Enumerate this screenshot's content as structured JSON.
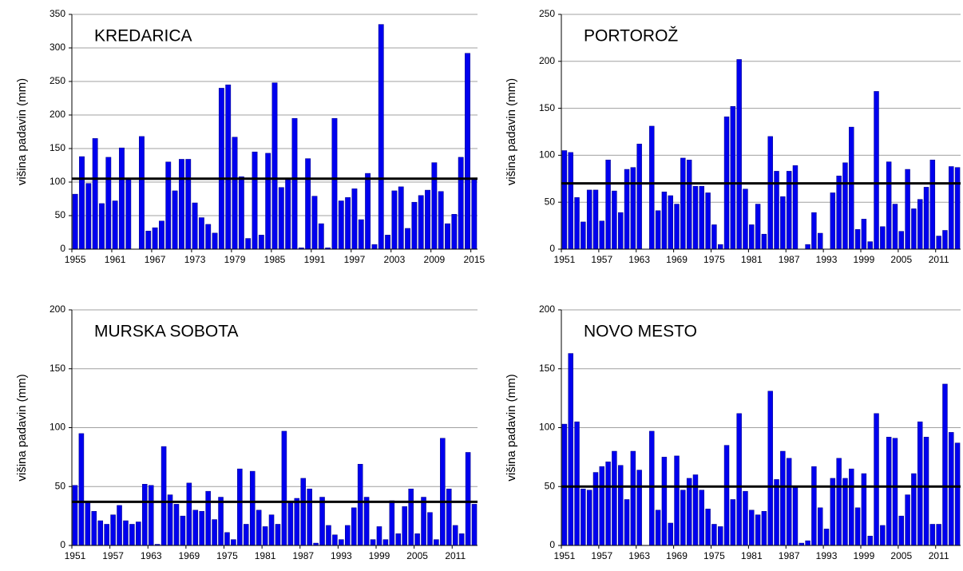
{
  "chart_data": [
    {
      "type": "bar",
      "title": "KREDARICA",
      "y_label": "višina padavin (mm)",
      "color": "#0000ee",
      "reference_line": 105,
      "categories": [
        "1955",
        null,
        null,
        null,
        null,
        null,
        "1961",
        null,
        null,
        null,
        null,
        null,
        "1967",
        null,
        null,
        null,
        null,
        null,
        "1973",
        null,
        null,
        null,
        null,
        null,
        "1979",
        null,
        null,
        null,
        null,
        null,
        "1985",
        null,
        null,
        null,
        null,
        null,
        "1991",
        null,
        null,
        null,
        null,
        null,
        "1997",
        null,
        null,
        null,
        null,
        null,
        "2003",
        null,
        null,
        null,
        null,
        null,
        "2009",
        null,
        null,
        null,
        null,
        null,
        "2015"
      ],
      "values": [
        82,
        138,
        98,
        165,
        68,
        137,
        72,
        151,
        104,
        0,
        168,
        27,
        32,
        42,
        130,
        87,
        134,
        134,
        69,
        47,
        37,
        24,
        240,
        245,
        167,
        108,
        16,
        145,
        21,
        143,
        248,
        92,
        105,
        195,
        2,
        135,
        79,
        38,
        2,
        195,
        72,
        77,
        90,
        44,
        113,
        7,
        335,
        21,
        87,
        93,
        31,
        70,
        80,
        88,
        129,
        86,
        38,
        52,
        137,
        292,
        105
      ],
      "ylim": [
        0,
        350
      ],
      "yticks": [
        0,
        50,
        100,
        150,
        200,
        250,
        300,
        350
      ],
      "grid": true
    },
    {
      "type": "bar",
      "title": "PORTOROŽ",
      "y_label": "višina padavin (mm)",
      "color": "#0000ee",
      "reference_line": 70,
      "categories": [
        "1951",
        null,
        null,
        null,
        null,
        null,
        "1957",
        null,
        null,
        null,
        null,
        null,
        "1963",
        null,
        null,
        null,
        null,
        null,
        "1969",
        null,
        null,
        null,
        null,
        null,
        "1975",
        null,
        null,
        null,
        null,
        null,
        "1981",
        null,
        null,
        null,
        null,
        null,
        "1987",
        null,
        null,
        null,
        null,
        null,
        "1993",
        null,
        null,
        null,
        null,
        null,
        "1999",
        null,
        null,
        null,
        null,
        null,
        "2005",
        null,
        null,
        null,
        null,
        null,
        "2011",
        null,
        null,
        null
      ],
      "values": [
        105,
        103,
        55,
        29,
        63,
        63,
        30,
        95,
        62,
        39,
        85,
        87,
        112,
        0,
        131,
        41,
        61,
        57,
        48,
        97,
        95,
        67,
        67,
        60,
        26,
        5,
        141,
        152,
        202,
        64,
        26,
        48,
        16,
        120,
        83,
        56,
        83,
        89,
        0,
        5,
        39,
        17,
        0,
        60,
        78,
        92,
        130,
        21,
        32,
        8,
        168,
        24,
        93,
        48,
        19,
        85,
        43,
        53,
        66,
        95,
        14,
        20,
        88,
        87
      ],
      "ylim": [
        0,
        250
      ],
      "yticks": [
        0,
        50,
        100,
        150,
        200,
        250
      ],
      "grid": true
    },
    {
      "type": "bar",
      "title": "MURSKA SOBOTA",
      "y_label": "višina padavin (mm)",
      "color": "#0000ee",
      "reference_line": 37,
      "categories": [
        "1951",
        null,
        null,
        null,
        null,
        null,
        "1957",
        null,
        null,
        null,
        null,
        null,
        "1963",
        null,
        null,
        null,
        null,
        null,
        "1969",
        null,
        null,
        null,
        null,
        null,
        "1975",
        null,
        null,
        null,
        null,
        null,
        "1981",
        null,
        null,
        null,
        null,
        null,
        "1987",
        null,
        null,
        null,
        null,
        null,
        "1993",
        null,
        null,
        null,
        null,
        null,
        "1999",
        null,
        null,
        null,
        null,
        null,
        "2005",
        null,
        null,
        null,
        null,
        null,
        "2011",
        null,
        null,
        null
      ],
      "values": [
        51,
        95,
        37,
        29,
        21,
        18,
        26,
        34,
        21,
        18,
        20,
        52,
        51,
        1,
        84,
        43,
        35,
        25,
        53,
        30,
        29,
        46,
        22,
        41,
        11,
        5,
        65,
        18,
        63,
        30,
        16,
        26,
        18,
        97,
        37,
        40,
        57,
        48,
        2,
        41,
        17,
        9,
        5,
        17,
        32,
        69,
        41,
        5,
        16,
        5,
        38,
        10,
        33,
        48,
        10,
        41,
        28,
        5,
        91,
        48,
        17,
        10,
        79,
        35
      ],
      "ylim": [
        0,
        200
      ],
      "yticks": [
        0,
        50,
        100,
        150,
        200
      ],
      "grid": true
    },
    {
      "type": "bar",
      "title": "NOVO MESTO",
      "y_label": "višina padavin (mm)",
      "color": "#0000ee",
      "reference_line": 50,
      "categories": [
        "1951",
        null,
        null,
        null,
        null,
        null,
        "1957",
        null,
        null,
        null,
        null,
        null,
        "1963",
        null,
        null,
        null,
        null,
        null,
        "1969",
        null,
        null,
        null,
        null,
        null,
        "1975",
        null,
        null,
        null,
        null,
        null,
        "1981",
        null,
        null,
        null,
        null,
        null,
        "1987",
        null,
        null,
        null,
        null,
        null,
        "1993",
        null,
        null,
        null,
        null,
        null,
        "1999",
        null,
        null,
        null,
        null,
        null,
        "2005",
        null,
        null,
        null,
        null,
        null,
        "2011",
        null,
        null,
        null
      ],
      "values": [
        103,
        163,
        105,
        48,
        47,
        62,
        67,
        71,
        80,
        68,
        39,
        80,
        64,
        0,
        97,
        30,
        75,
        19,
        76,
        47,
        57,
        60,
        47,
        31,
        18,
        16,
        85,
        39,
        112,
        46,
        30,
        26,
        29,
        131,
        56,
        80,
        74,
        49,
        2,
        4,
        67,
        32,
        14,
        57,
        74,
        57,
        65,
        32,
        61,
        8,
        112,
        17,
        92,
        91,
        25,
        43,
        61,
        105,
        92,
        18,
        18,
        137,
        96,
        87
      ],
      "ylim": [
        0,
        200
      ],
      "yticks": [
        0,
        50,
        100,
        150,
        200
      ],
      "grid": true
    }
  ]
}
